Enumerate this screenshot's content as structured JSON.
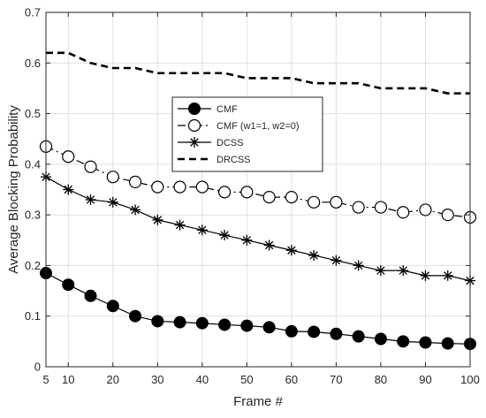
{
  "chart_data": {
    "type": "line",
    "title": "",
    "xlabel": "Frame #",
    "ylabel": "Average Blocking Probability",
    "xlim": [
      5,
      100
    ],
    "ylim": [
      0,
      0.7
    ],
    "xticks": [
      5,
      10,
      20,
      30,
      40,
      50,
      60,
      70,
      80,
      90,
      100
    ],
    "xtick_labels": [
      "5",
      "10",
      "20",
      "30",
      "40",
      "50",
      "60",
      "70",
      "80",
      "90",
      "100"
    ],
    "yticks": [
      0,
      0.1,
      0.2,
      0.3,
      0.4,
      0.5,
      0.6,
      0.7
    ],
    "ytick_labels": [
      "0",
      "0.1",
      "0.2",
      "0.3",
      "0.4",
      "0.5",
      "0.6",
      "0.7"
    ],
    "grid": true,
    "legend_position": "upper-center",
    "x": [
      5,
      10,
      15,
      20,
      25,
      30,
      35,
      40,
      45,
      50,
      55,
      60,
      65,
      70,
      75,
      80,
      85,
      90,
      95,
      100
    ],
    "series": [
      {
        "name": "CMF",
        "marker": "filled-circle",
        "line": "solid",
        "color": "#000000",
        "values": [
          0.185,
          0.162,
          0.14,
          0.12,
          0.1,
          0.09,
          0.088,
          0.086,
          0.083,
          0.081,
          0.078,
          0.07,
          0.069,
          0.065,
          0.06,
          0.055,
          0.05,
          0.048,
          0.046,
          0.045
        ]
      },
      {
        "name": "CMF (w1=1, w2=0)",
        "marker": "open-circle",
        "line": "dashdot",
        "color": "#000000",
        "values": [
          0.435,
          0.415,
          0.395,
          0.375,
          0.365,
          0.355,
          0.355,
          0.355,
          0.345,
          0.345,
          0.335,
          0.335,
          0.325,
          0.325,
          0.315,
          0.315,
          0.305,
          0.31,
          0.3,
          0.295
        ]
      },
      {
        "name": "DCSS",
        "marker": "asterisk",
        "line": "solid",
        "color": "#000000",
        "values": [
          0.375,
          0.35,
          0.33,
          0.325,
          0.31,
          0.29,
          0.28,
          0.27,
          0.26,
          0.25,
          0.24,
          0.23,
          0.22,
          0.21,
          0.2,
          0.19,
          0.19,
          0.18,
          0.18,
          0.17
        ]
      },
      {
        "name": "DRCSS",
        "marker": "none",
        "line": "dashed",
        "color": "#000000",
        "values": [
          0.62,
          0.62,
          0.6,
          0.59,
          0.59,
          0.58,
          0.58,
          0.58,
          0.58,
          0.57,
          0.57,
          0.57,
          0.56,
          0.56,
          0.56,
          0.55,
          0.55,
          0.55,
          0.54,
          0.54
        ]
      }
    ]
  }
}
